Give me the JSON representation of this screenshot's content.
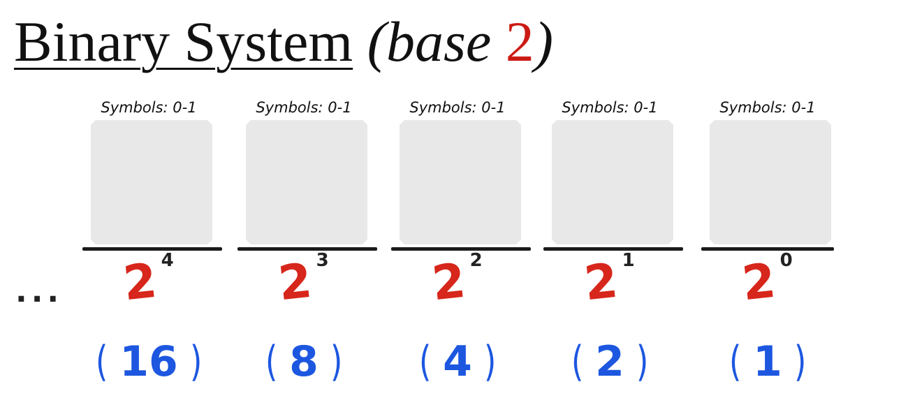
{
  "title": {
    "main": "Binary System",
    "open_paren": "(",
    "base_word": "base",
    "base_number": "2",
    "close_paren": ")"
  },
  "ellipsis": "...",
  "columns": [
    {
      "symbols": "Symbols: 0-1",
      "base": "2",
      "exponent": "4",
      "place_value": "16"
    },
    {
      "symbols": "Symbols: 0-1",
      "base": "2",
      "exponent": "3",
      "place_value": "8"
    },
    {
      "symbols": "Symbols: 0-1",
      "base": "2",
      "exponent": "2",
      "place_value": "4"
    },
    {
      "symbols": "Symbols: 0-1",
      "base": "2",
      "exponent": "1",
      "place_value": "2"
    },
    {
      "symbols": "Symbols: 0-1",
      "base": "2",
      "exponent": "0",
      "place_value": "1"
    }
  ],
  "paren_open": "(",
  "paren_close": ")",
  "colors": {
    "base_red": "#d7261b",
    "place_blue": "#1d57e0",
    "box_gray": "#e8e8e8"
  }
}
